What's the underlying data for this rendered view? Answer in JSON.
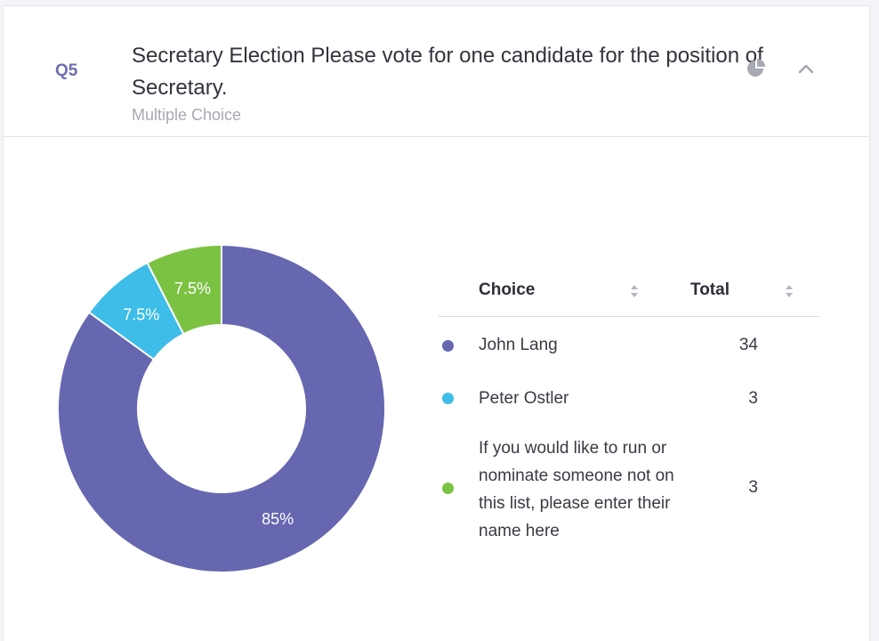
{
  "question": {
    "number": "Q5",
    "title": "Secretary Election Please vote for one candidate for the position of Secretary.",
    "type": "Multiple Choice",
    "icons": {
      "chart_toggle": "pie-chart-icon",
      "collapse": "chevron-up-icon"
    }
  },
  "table": {
    "header_choice": "Choice",
    "header_total": "Total",
    "rows": [
      {
        "label": "John Lang",
        "total": "34"
      },
      {
        "label": "Peter Ostler",
        "total": "3"
      },
      {
        "label": "If you would like to run or nominate someone not on this list, please enter their name here",
        "total": "3"
      }
    ]
  },
  "chart_data": {
    "type": "pie",
    "donut": true,
    "categories": [
      "John Lang",
      "Peter Ostler",
      "If you would like to run or nominate someone not on this list, please enter their name here"
    ],
    "values": [
      85,
      7.5,
      7.5
    ],
    "labels": [
      "85%",
      "7.5%",
      "7.5%"
    ],
    "colors": [
      "#6667b0",
      "#3dbde8",
      "#7cc242"
    ]
  }
}
